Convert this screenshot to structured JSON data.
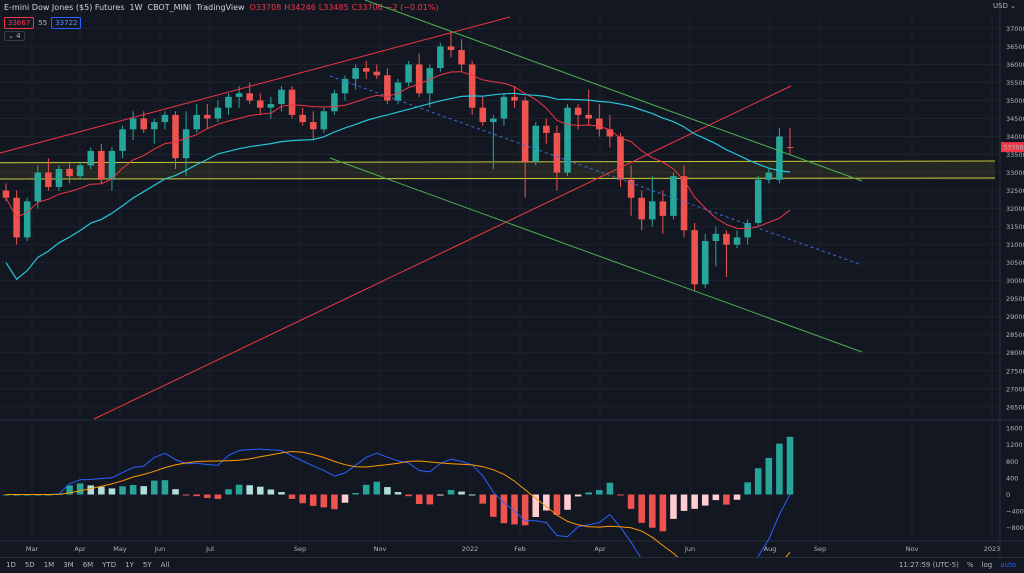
{
  "header": {
    "symbol": "E-mini Dow Jones ($5) Futures",
    "interval": "1W",
    "exchange": "CBOT_MINI",
    "source": "TradingView",
    "open": "O33708",
    "high": "H34246",
    "low": "L33485",
    "close": "C33706",
    "change": "−2 (−0.01%)"
  },
  "indicators": {
    "ma1_value": "33667",
    "ma_length": "55",
    "ma2_value": "33722",
    "collapse_label": "4"
  },
  "currency": "USD",
  "price_axis": [
    "37000",
    "36500",
    "36000",
    "35500",
    "35000",
    "34500",
    "34000",
    "33500",
    "33000",
    "32500",
    "32000",
    "31500",
    "31000",
    "30500",
    "30000",
    "29500",
    "29000",
    "28500",
    "28000",
    "27500",
    "27000",
    "26500"
  ],
  "last_price_label": "33706",
  "macd_axis": [
    "1600",
    "1200",
    "800",
    "400",
    "0",
    "−400",
    "−800"
  ],
  "time_axis": [
    "Mar",
    "Apr",
    "May",
    "Jun",
    "Jul",
    "Sep",
    "Nov",
    "2022",
    "Feb",
    "Apr",
    "Jun",
    "Aug",
    "Sep",
    "Nov",
    "2023"
  ],
  "timeframes": [
    "1D",
    "5D",
    "1M",
    "3M",
    "6M",
    "YTD",
    "1Y",
    "5Y",
    "All"
  ],
  "footer": {
    "clock": "11:27:59 (UTC-5)",
    "percent": "%",
    "log": "log",
    "auto": "auto"
  },
  "colors": {
    "background": "#131722",
    "bull": "#26a69a",
    "bear": "#ef5350",
    "ma_red": "#f23645",
    "ma_teal": "#26c6da",
    "channel_green": "#4caf50",
    "channel_red": "#f23645",
    "zone_yellow": "#c8c83c",
    "macd_line": "#2962ff",
    "signal_line": "#ff9800",
    "hist_pos": "#26a69a",
    "hist_neg": "#ef5350",
    "hist_pos_light": "#b2dfdb",
    "hist_neg_light": "#ffcdd2"
  },
  "chart_data": {
    "type": "candlestick",
    "ylim": [
      26300,
      37400
    ],
    "candles": [
      [
        32500,
        32700,
        32200,
        32300
      ],
      [
        32300,
        32500,
        31000,
        31200
      ],
      [
        31200,
        32300,
        31100,
        32200
      ],
      [
        32200,
        33200,
        32000,
        33000
      ],
      [
        33000,
        33400,
        32500,
        32600
      ],
      [
        32600,
        33200,
        32500,
        33100
      ],
      [
        33100,
        33300,
        32700,
        32900
      ],
      [
        32900,
        33300,
        32800,
        33200
      ],
      [
        33200,
        33700,
        33100,
        33600
      ],
      [
        33600,
        33800,
        32700,
        32800
      ],
      [
        32800,
        33700,
        32500,
        33600
      ],
      [
        33600,
        34300,
        33400,
        34200
      ],
      [
        34200,
        34700,
        33900,
        34500
      ],
      [
        34500,
        34700,
        34100,
        34200
      ],
      [
        34200,
        34500,
        33800,
        34400
      ],
      [
        34400,
        34700,
        34200,
        34600
      ],
      [
        34600,
        34700,
        33100,
        33400
      ],
      [
        33400,
        34700,
        32900,
        34200
      ],
      [
        34200,
        34900,
        34100,
        34600
      ],
      [
        34600,
        34900,
        34200,
        34500
      ],
      [
        34500,
        35000,
        34400,
        34800
      ],
      [
        34800,
        35200,
        34600,
        35100
      ],
      [
        35100,
        35400,
        34800,
        35200
      ],
      [
        35200,
        35500,
        34900,
        35000
      ],
      [
        35000,
        35200,
        34600,
        34800
      ],
      [
        34800,
        35100,
        34500,
        34900
      ],
      [
        34900,
        35400,
        34700,
        35300
      ],
      [
        35300,
        35400,
        34500,
        34600
      ],
      [
        34600,
        34800,
        34300,
        34400
      ],
      [
        34400,
        34700,
        33900,
        34200
      ],
      [
        34200,
        34800,
        34100,
        34700
      ],
      [
        34700,
        35300,
        34600,
        35200
      ],
      [
        35200,
        35700,
        35000,
        35600
      ],
      [
        35600,
        36000,
        35300,
        35900
      ],
      [
        35900,
        36100,
        35600,
        35800
      ],
      [
        35800,
        36000,
        35600,
        35700
      ],
      [
        35700,
        35900,
        34900,
        35000
      ],
      [
        35000,
        35600,
        34900,
        35500
      ],
      [
        35500,
        36100,
        35400,
        36000
      ],
      [
        36000,
        36300,
        35100,
        35200
      ],
      [
        35200,
        36000,
        34800,
        35900
      ],
      [
        35900,
        36600,
        35800,
        36500
      ],
      [
        36500,
        36900,
        36200,
        36400
      ],
      [
        36400,
        36700,
        35800,
        36000
      ],
      [
        36000,
        36100,
        34600,
        34800
      ],
      [
        34800,
        35100,
        34300,
        34400
      ],
      [
        34400,
        34600,
        33100,
        34500
      ],
      [
        34500,
        35200,
        34300,
        35100
      ],
      [
        35100,
        35400,
        34800,
        35000
      ],
      [
        35000,
        35100,
        32300,
        33300
      ],
      [
        33300,
        34400,
        33200,
        34300
      ],
      [
        34300,
        34500,
        33800,
        34100
      ],
      [
        34100,
        34300,
        32500,
        33000
      ],
      [
        33000,
        34900,
        32900,
        34800
      ],
      [
        34800,
        34900,
        34200,
        34600
      ],
      [
        34600,
        35300,
        34300,
        34500
      ],
      [
        34500,
        34900,
        34000,
        34200
      ],
      [
        34200,
        34600,
        33700,
        34000
      ],
      [
        34000,
        34100,
        32600,
        32800
      ],
      [
        32800,
        33200,
        31800,
        32300
      ],
      [
        32300,
        32500,
        31400,
        31700
      ],
      [
        31700,
        32900,
        31500,
        32200
      ],
      [
        32200,
        32500,
        31300,
        31800
      ],
      [
        31800,
        33000,
        31700,
        32900
      ],
      [
        32900,
        33200,
        31200,
        31400
      ],
      [
        31400,
        31600,
        29700,
        29900
      ],
      [
        29900,
        31300,
        29800,
        31100
      ],
      [
        31100,
        31500,
        30400,
        31300
      ],
      [
        31300,
        31400,
        30100,
        31000
      ],
      [
        31000,
        31400,
        30900,
        31200
      ],
      [
        31200,
        31700,
        31000,
        31600
      ],
      [
        31600,
        32900,
        31500,
        32800
      ],
      [
        32800,
        33100,
        32700,
        33000
      ],
      [
        32800,
        34246,
        32700,
        34000
      ],
      [
        33708,
        34246,
        33485,
        33706
      ]
    ]
  }
}
